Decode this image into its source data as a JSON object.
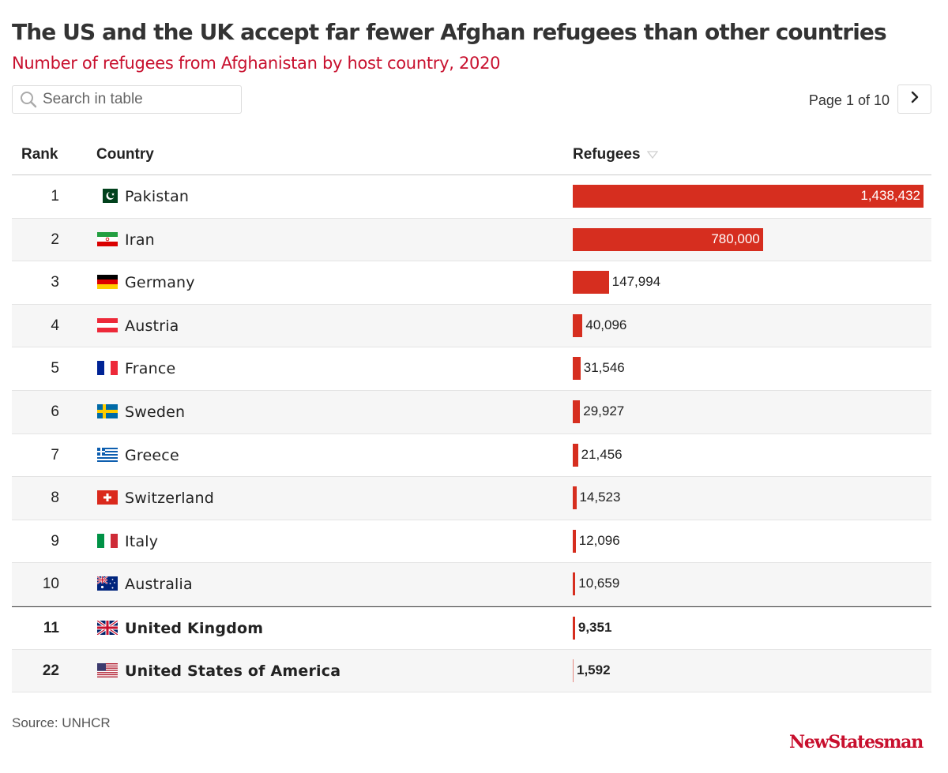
{
  "header": {
    "title": "The US and the UK accept far fewer Afghan refugees than other countries",
    "subtitle": "Number of refugees from Afghanistan by host country, 2020"
  },
  "search": {
    "placeholder": "Search in table",
    "value": ""
  },
  "pagination": {
    "label": "Page 1 of 10",
    "current_page": 1,
    "total_pages": 10
  },
  "columns": {
    "rank": "Rank",
    "country": "Country",
    "refugees": "Refugees"
  },
  "footer": {
    "source": "Source: UNHCR",
    "logo": "NewStatesman"
  },
  "colors": {
    "bar": "#d62e1f",
    "subtitle": "#c8102e",
    "logo": "#c8102e"
  },
  "chart_data": {
    "type": "table",
    "title": "The US and the UK accept far fewer Afghan refugees than other countries",
    "subtitle": "Number of refugees from Afghanistan by host country, 2020",
    "columns": [
      "Rank",
      "Country",
      "Refugees"
    ],
    "sort": {
      "column": "Refugees",
      "direction": "descending"
    },
    "rows": [
      {
        "rank": "1",
        "country": "Pakistan",
        "flag": "pakistan-flag-icon",
        "value": 1438432,
        "label": "1,438,432",
        "highlight": false
      },
      {
        "rank": "2",
        "country": "Iran",
        "flag": "iran-flag-icon",
        "value": 780000,
        "label": "780,000",
        "highlight": false
      },
      {
        "rank": "3",
        "country": "Germany",
        "flag": "germany-flag-icon",
        "value": 147994,
        "label": "147,994",
        "highlight": false
      },
      {
        "rank": "4",
        "country": "Austria",
        "flag": "austria-flag-icon",
        "value": 40096,
        "label": "40,096",
        "highlight": false
      },
      {
        "rank": "5",
        "country": "France",
        "flag": "france-flag-icon",
        "value": 31546,
        "label": "31,546",
        "highlight": false
      },
      {
        "rank": "6",
        "country": "Sweden",
        "flag": "sweden-flag-icon",
        "value": 29927,
        "label": "29,927",
        "highlight": false
      },
      {
        "rank": "7",
        "country": "Greece",
        "flag": "greece-flag-icon",
        "value": 21456,
        "label": "21,456",
        "highlight": false
      },
      {
        "rank": "8",
        "country": "Switzerland",
        "flag": "switzerland-flag-icon",
        "value": 14523,
        "label": "14,523",
        "highlight": false
      },
      {
        "rank": "9",
        "country": "Italy",
        "flag": "italy-flag-icon",
        "value": 12096,
        "label": "12,096",
        "highlight": false
      },
      {
        "rank": "10",
        "country": "Australia",
        "flag": "australia-flag-icon",
        "value": 10659,
        "label": "10,659",
        "highlight": false
      },
      {
        "rank": "11",
        "country": "United Kingdom",
        "flag": "uk-flag-icon",
        "value": 9351,
        "label": "9,351",
        "highlight": true
      },
      {
        "rank": "22",
        "country": "United States of America",
        "flag": "usa-flag-icon",
        "value": 1592,
        "label": "1,592",
        "highlight": true
      }
    ]
  }
}
